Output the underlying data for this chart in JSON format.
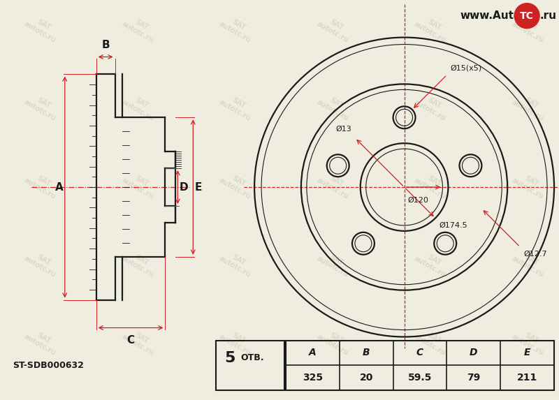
{
  "bg_color": "#eeede0",
  "line_color": "#1a1a1a",
  "red_color": "#cc2222",
  "part_number": "ST-SDB000632",
  "bolt_count": "5",
  "otv_label": "ОТВ.",
  "table_headers": [
    "A",
    "B",
    "C",
    "D",
    "E"
  ],
  "table_values": [
    "325",
    "20",
    "59.5",
    "79",
    "211"
  ],
  "dim_labels": {
    "d13": "Ø13",
    "d15x5": "Ø15(x5)",
    "d120": "Ø120",
    "d174_5": "Ø174.5",
    "d12_7": "Ø12.7",
    "A": "A",
    "B": "B",
    "C": "C",
    "D": "D",
    "E": "E"
  }
}
